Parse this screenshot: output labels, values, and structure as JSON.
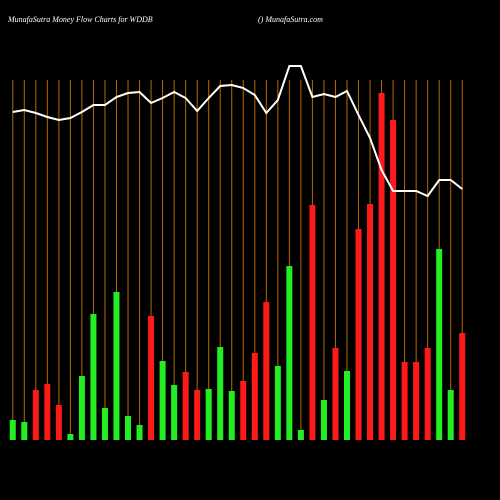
{
  "chart_data": {
    "type": "bar",
    "title": "MunafaSutra  Money Flow  Charts for WDDB",
    "subtitle": "() MunafaSutra.com",
    "categories": [
      null,
      null,
      null,
      null,
      null,
      null,
      null,
      null,
      null,
      null,
      null,
      null,
      null,
      null,
      null,
      null,
      null,
      null,
      null,
      null,
      null,
      null,
      null,
      null,
      null,
      null,
      null,
      null,
      null,
      null,
      null,
      null,
      null,
      null,
      null,
      null,
      null,
      null,
      null,
      null
    ],
    "colors": [
      "#22ee22",
      "#22ee22",
      "#ff1a1a",
      "#ff1a1a",
      "#ff1a1a",
      "#22ee22",
      "#22ee22",
      "#22ee22",
      "#22ee22",
      "#22ee22",
      "#22ee22",
      "#22ee22",
      "#ff1a1a",
      "#22ee22",
      "#22ee22",
      "#ff1a1a",
      "#ff1a1a",
      "#22ee22",
      "#22ee22",
      "#22ee22",
      "#ff1a1a",
      "#ff1a1a",
      "#ff1a1a",
      "#22ee22",
      "#22ee22",
      "#22ee22",
      "#ff1a1a",
      "#22ee22",
      "#ff1a1a",
      "#22ee22",
      "#ff1a1a",
      "#ff1a1a",
      "#ff1a1a",
      "#ff1a1a",
      "#ff1a1a",
      "#ff1a1a",
      "#ff1a1a",
      "#22ee22",
      "#22ee22",
      "#ff1a1a"
    ],
    "values": [
      20,
      18,
      50,
      56,
      35,
      6,
      64,
      126,
      32,
      148,
      24,
      15,
      124,
      79,
      55,
      68,
      50,
      51,
      93,
      49,
      59,
      87,
      138,
      74,
      174,
      10,
      235,
      40,
      92,
      69,
      211,
      236,
      347,
      320,
      78,
      78,
      92,
      191,
      50,
      107
    ],
    "line": {
      "color": "#ffffff",
      "values": [
        328,
        330,
        327,
        323,
        320,
        322,
        328,
        335,
        335,
        343,
        347,
        348,
        337,
        342,
        348,
        342,
        329,
        342,
        354,
        355,
        352,
        345,
        327,
        340,
        374,
        374,
        343,
        346,
        343,
        349,
        325,
        302,
        270,
        249,
        249,
        249,
        244,
        260,
        260,
        251
      ]
    },
    "ylim": [
      0,
      360
    ],
    "grid_color": "#b86a00",
    "background": "#000000"
  }
}
